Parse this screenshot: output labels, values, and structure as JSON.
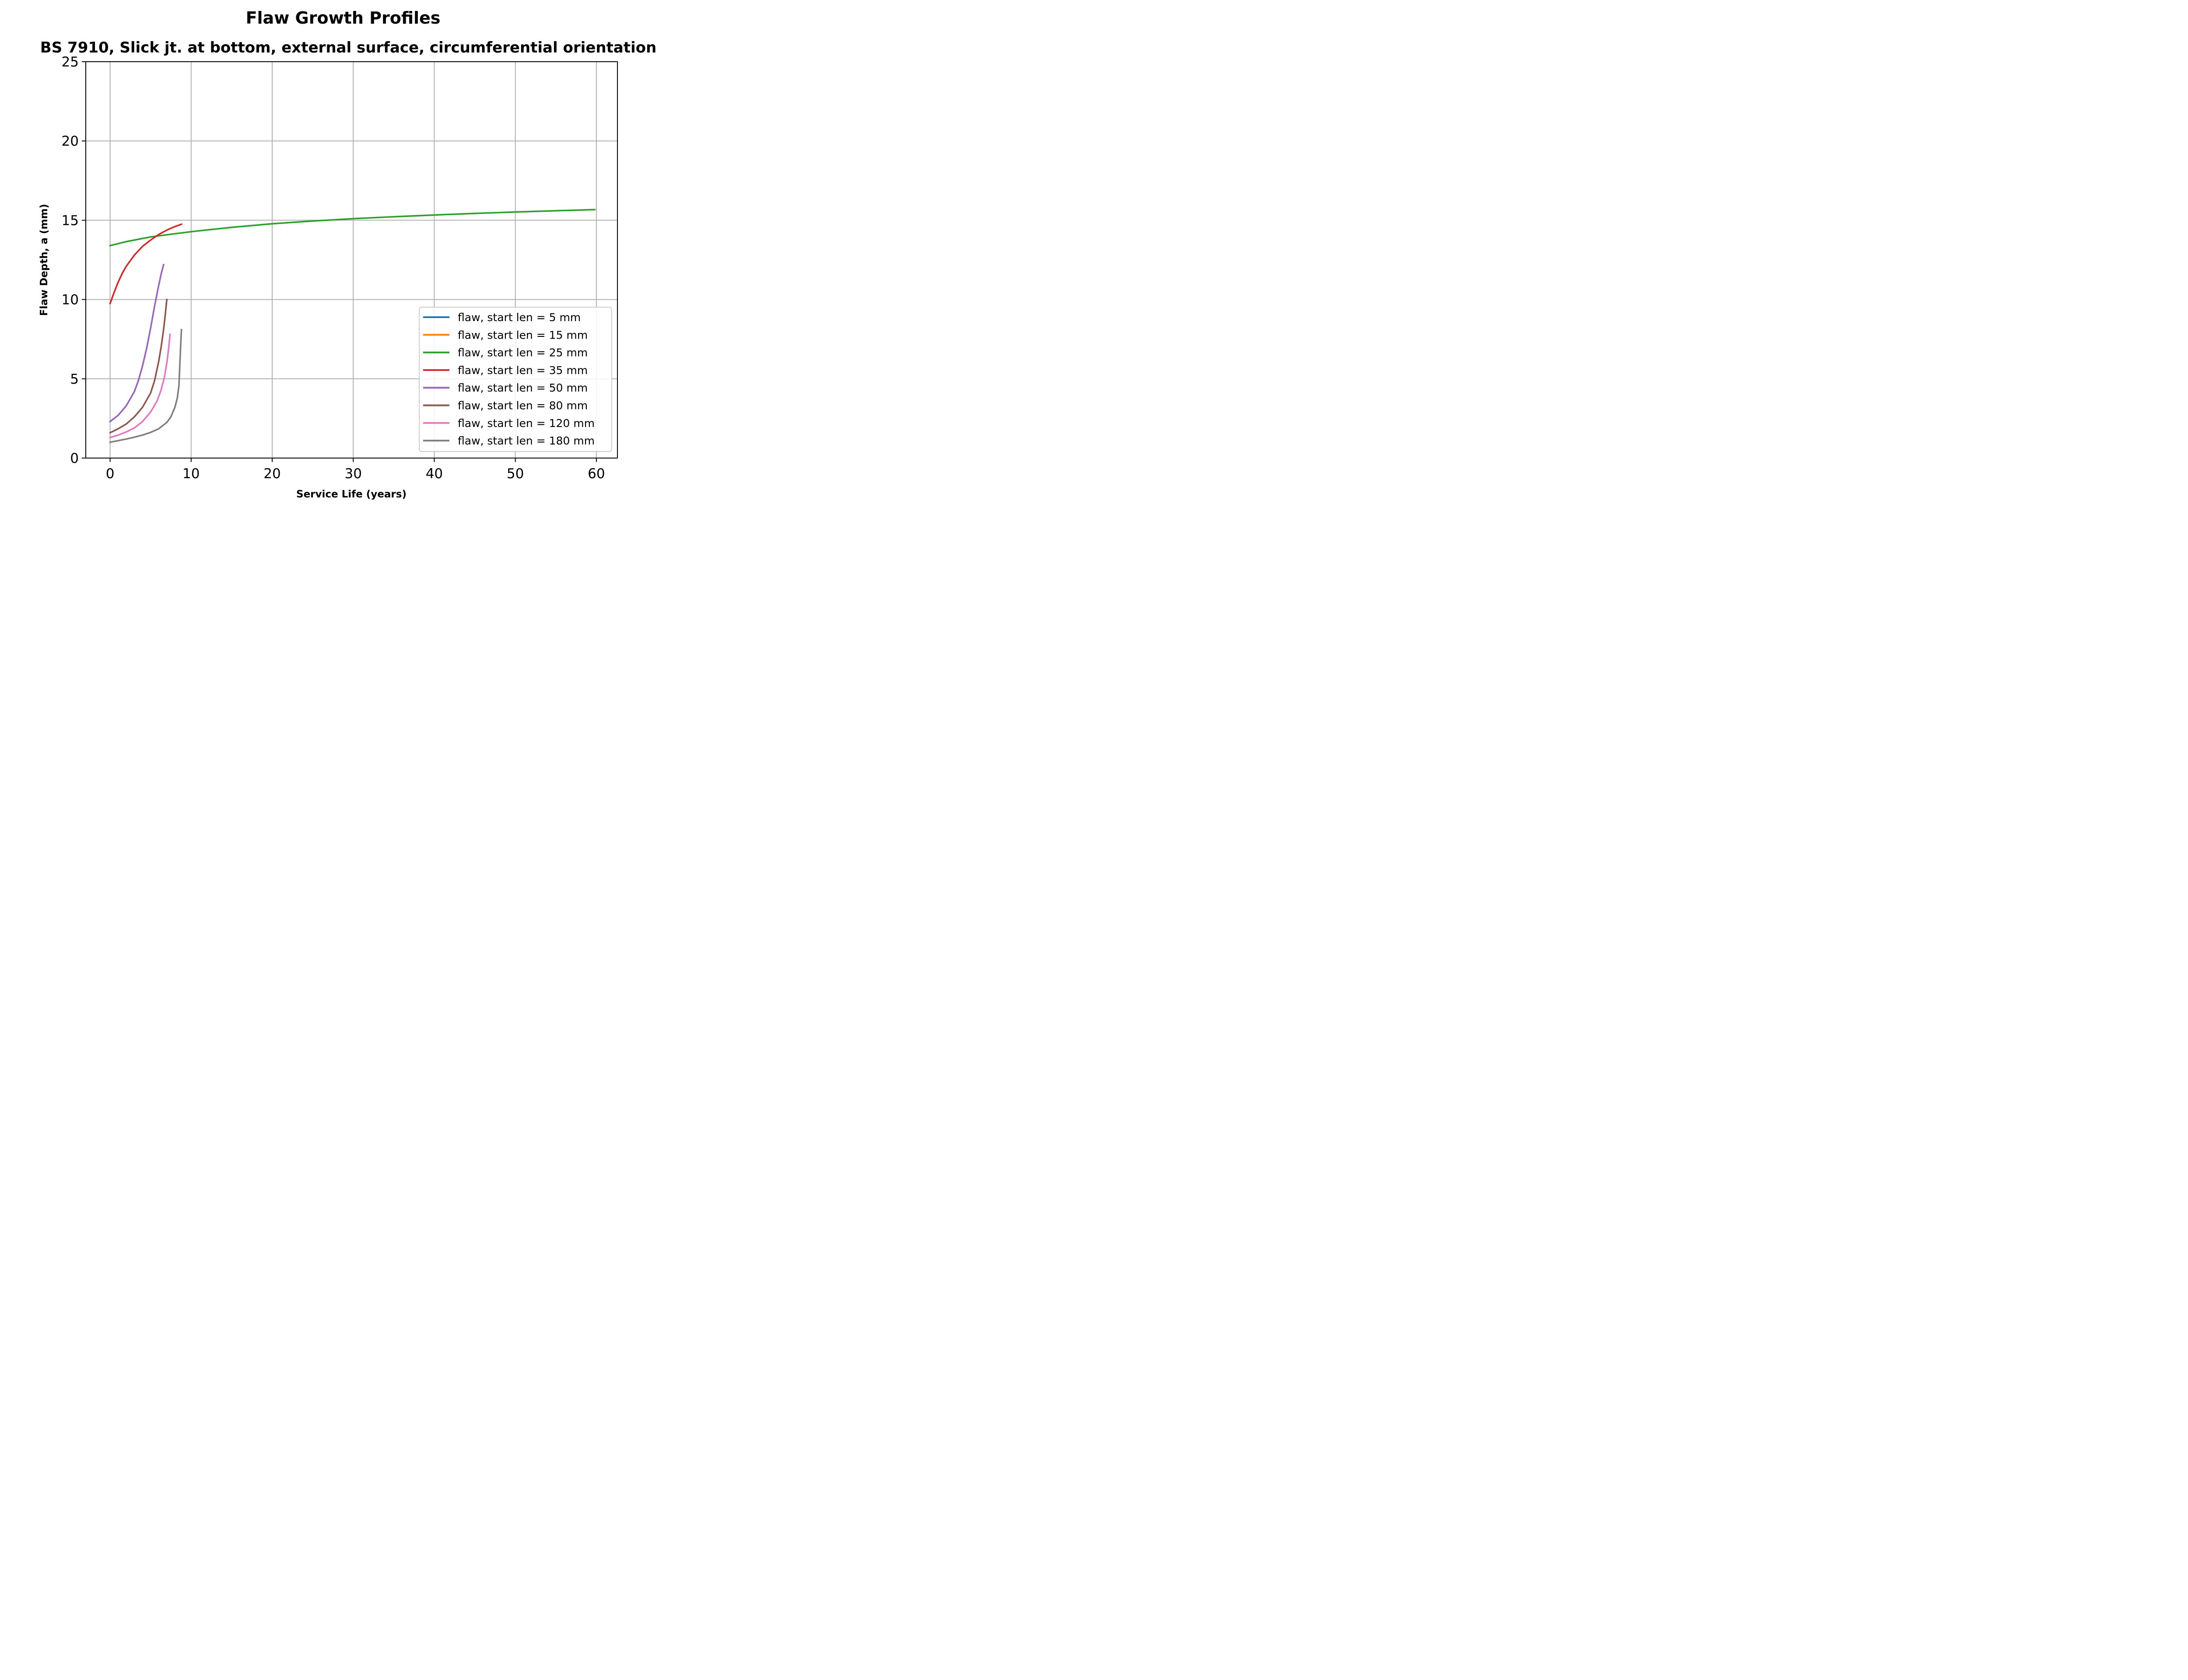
{
  "chart_data": {
    "type": "line",
    "title": "Flaw Growth Profiles",
    "subtitle": "BS 7910, Slick jt. at bottom, external surface, circumferential orientation",
    "xlabel": "Service Life (years)",
    "ylabel": "Flaw Depth, a (mm)",
    "xlim": [
      -3,
      62.6
    ],
    "ylim": [
      0,
      25
    ],
    "xticks": [
      0,
      10,
      20,
      30,
      40,
      50,
      60
    ],
    "yticks": [
      0,
      5,
      10,
      15,
      20,
      25
    ],
    "grid": true,
    "legend_position": "lower-right",
    "series": [
      {
        "name": "flaw, start len = 5 mm",
        "color": "#1f77b4",
        "x": [],
        "y": []
      },
      {
        "name": "flaw, start len = 15 mm",
        "color": "#ff7f0e",
        "x": [],
        "y": []
      },
      {
        "name": "flaw, start len = 25 mm",
        "color": "#2ca02c",
        "x": [
          0,
          2,
          5,
          10,
          15,
          20,
          25,
          30,
          35,
          40,
          45,
          50,
          55,
          59.8
        ],
        "y": [
          13.4,
          13.65,
          13.95,
          14.28,
          14.55,
          14.78,
          14.95,
          15.1,
          15.22,
          15.33,
          15.43,
          15.52,
          15.6,
          15.67
        ]
      },
      {
        "name": "flaw, start len = 35 mm",
        "color": "#d62728",
        "x": [
          0,
          0.5,
          1,
          1.5,
          2,
          3,
          4,
          5,
          6,
          7,
          8,
          8.8
        ],
        "y": [
          9.75,
          10.45,
          11.1,
          11.65,
          12.1,
          12.8,
          13.35,
          13.75,
          14.1,
          14.38,
          14.6,
          14.75
        ]
      },
      {
        "name": "flaw, start len = 50 mm",
        "color": "#9467bd",
        "x": [
          0,
          1,
          2,
          3,
          3.5,
          4,
          4.5,
          5,
          5.5,
          6,
          6.3,
          6.6
        ],
        "y": [
          2.3,
          2.7,
          3.3,
          4.2,
          4.9,
          5.8,
          6.9,
          8.2,
          9.6,
          10.9,
          11.6,
          12.2
        ]
      },
      {
        "name": "flaw, start len = 80 mm",
        "color": "#8c564b",
        "x": [
          0,
          1,
          2,
          3,
          4,
          5,
          5.5,
          6,
          6.3,
          6.6,
          6.8,
          7.0
        ],
        "y": [
          1.6,
          1.85,
          2.15,
          2.6,
          3.2,
          4.1,
          4.9,
          6.1,
          7.0,
          8.1,
          9.0,
          10.0
        ]
      },
      {
        "name": "flaw, start len = 120 mm",
        "color": "#e377c2",
        "x": [
          0,
          1,
          2,
          3,
          4,
          5,
          5.8,
          6.3,
          6.7,
          7.0,
          7.2,
          7.4
        ],
        "y": [
          1.3,
          1.45,
          1.65,
          1.9,
          2.3,
          2.9,
          3.6,
          4.3,
          5.1,
          6.0,
          6.8,
          7.8
        ]
      },
      {
        "name": "flaw, start len = 180 mm",
        "color": "#7f7f7f",
        "x": [
          0,
          1,
          2,
          3,
          4,
          5,
          6,
          7,
          7.5,
          8,
          8.3,
          8.5,
          8.6,
          8.7,
          8.8
        ],
        "y": [
          1.0,
          1.1,
          1.2,
          1.32,
          1.45,
          1.62,
          1.85,
          2.25,
          2.6,
          3.2,
          3.8,
          4.6,
          5.8,
          7.0,
          8.1
        ]
      }
    ]
  }
}
